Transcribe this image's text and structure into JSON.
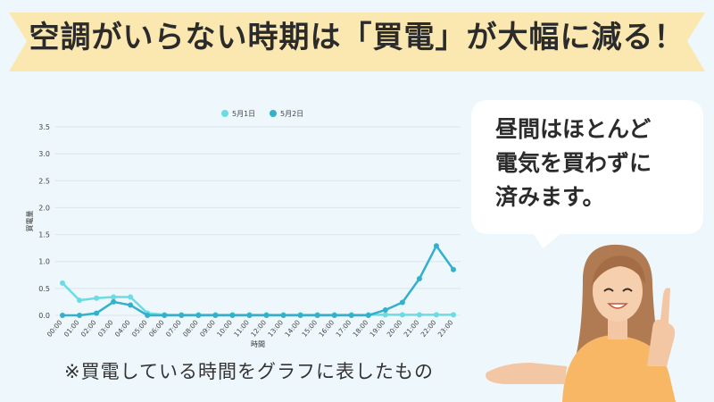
{
  "banner": {
    "title": "空調がいらない時期は「買電」が大幅に減る！",
    "color": "#fbe7b0"
  },
  "bubble": {
    "lines": [
      "昼間はほとんど",
      "電気を買わずに",
      "済みます。"
    ]
  },
  "footnote": "※買電している時間をグラフに表したもの",
  "chart_data": {
    "type": "line",
    "ylabel": "買電量",
    "xlabel": "時間",
    "ylim": [
      0,
      3.5
    ],
    "yticks": [
      "0.0",
      "0.5",
      "1.0",
      "1.5",
      "2.0",
      "2.5",
      "3.0",
      "3.5"
    ],
    "grid": true,
    "legend_position": "top-center",
    "x": [
      "00:00",
      "01:00",
      "02:00",
      "03:00",
      "04:00",
      "05:00",
      "06:00",
      "07:00",
      "08:00",
      "09:00",
      "10:00",
      "11:00",
      "12:00",
      "13:00",
      "14:00",
      "15:00",
      "16:00",
      "17:00",
      "18:00",
      "19:00",
      "20:00",
      "21:00",
      "22:00",
      "23:00"
    ],
    "series": [
      {
        "name": "5月1日",
        "color": "#6ddbe3",
        "values": [
          0.6,
          0.28,
          0.32,
          0.34,
          0.34,
          0.04,
          0.01,
          0.01,
          0.01,
          0.01,
          0.01,
          0.01,
          0.01,
          0.01,
          0.01,
          0.01,
          0.01,
          0.01,
          0.01,
          0.01,
          0.01,
          0.01,
          0.01,
          0.01
        ]
      },
      {
        "name": "5月2日",
        "color": "#33b0cb",
        "values": [
          0.0,
          0.0,
          0.04,
          0.25,
          0.19,
          0.0,
          0.0,
          0.0,
          0.0,
          0.0,
          0.0,
          0.0,
          0.0,
          0.0,
          0.0,
          0.0,
          0.0,
          0.0,
          0.0,
          0.1,
          0.24,
          0.68,
          1.29,
          0.85
        ]
      }
    ]
  }
}
